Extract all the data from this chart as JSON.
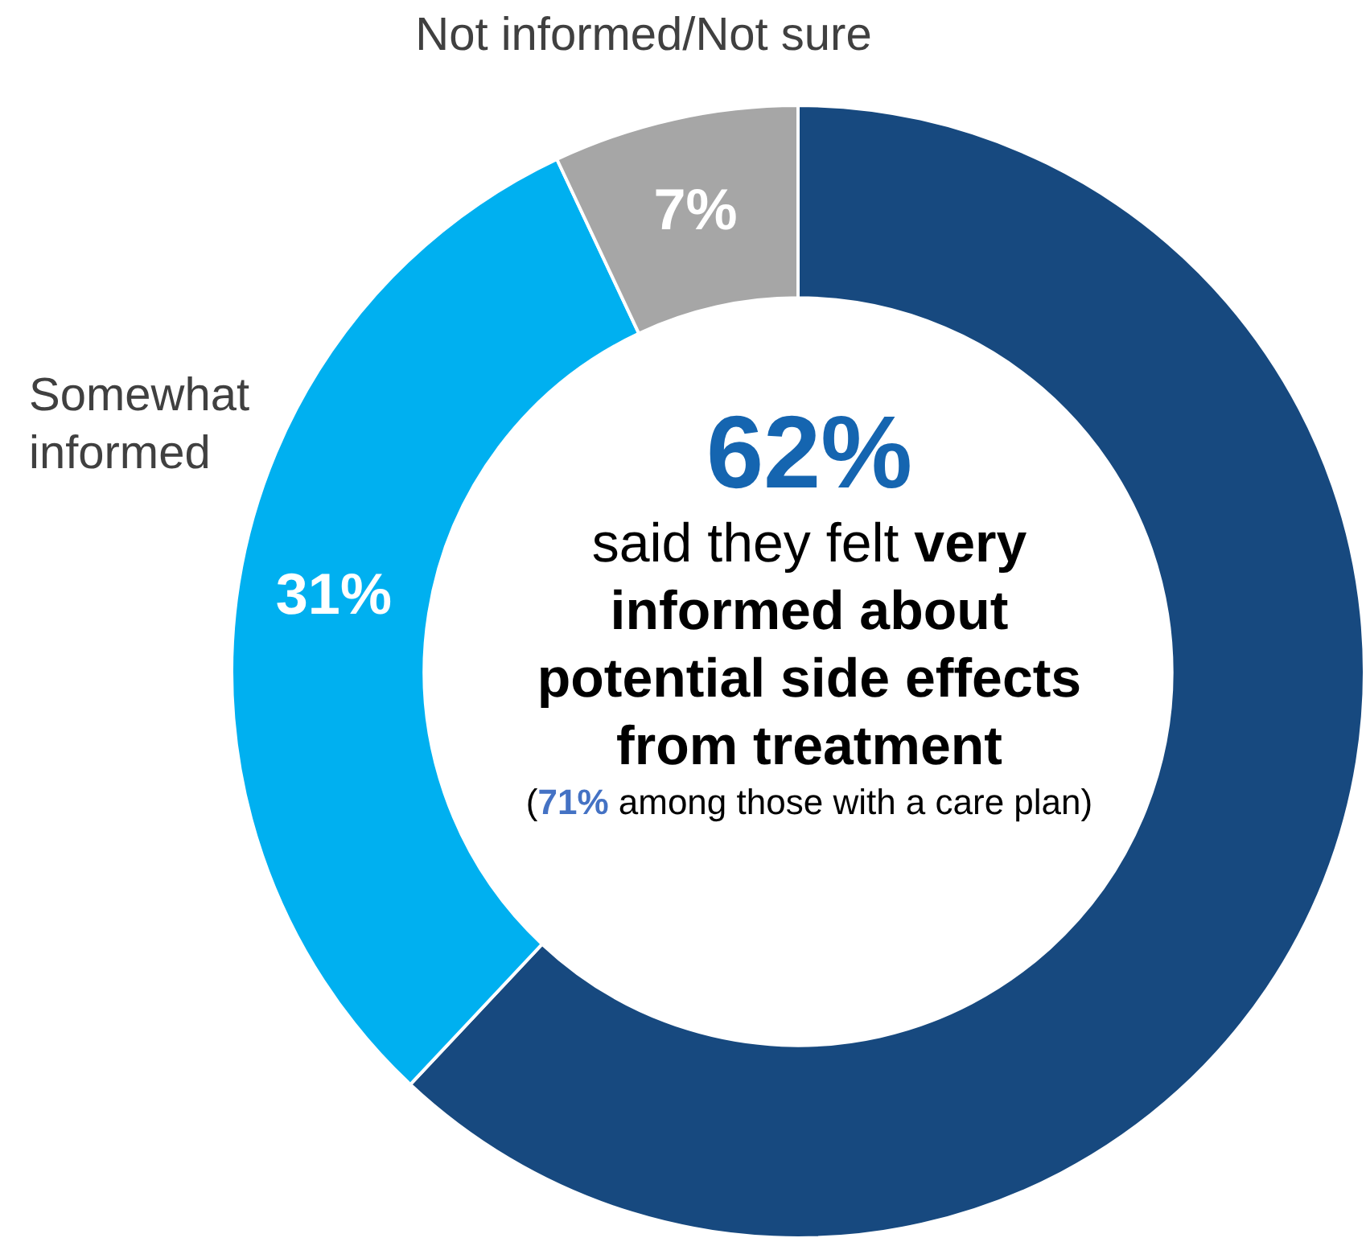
{
  "chart_data": {
    "type": "donut",
    "categories": [
      null,
      "Somewhat informed",
      "Not informed/Not sure"
    ],
    "values": [
      62,
      31,
      7
    ],
    "colors": [
      "#17497f",
      "#00b0f0",
      "#a6a6a6"
    ],
    "value_labels": [
      null,
      "31%",
      "7%"
    ],
    "legend": false,
    "annotations": [
      "62%",
      "said they felt",
      "very informed about potential side effects from treatment",
      "(",
      "71%",
      "among those with a care plan)"
    ]
  }
}
